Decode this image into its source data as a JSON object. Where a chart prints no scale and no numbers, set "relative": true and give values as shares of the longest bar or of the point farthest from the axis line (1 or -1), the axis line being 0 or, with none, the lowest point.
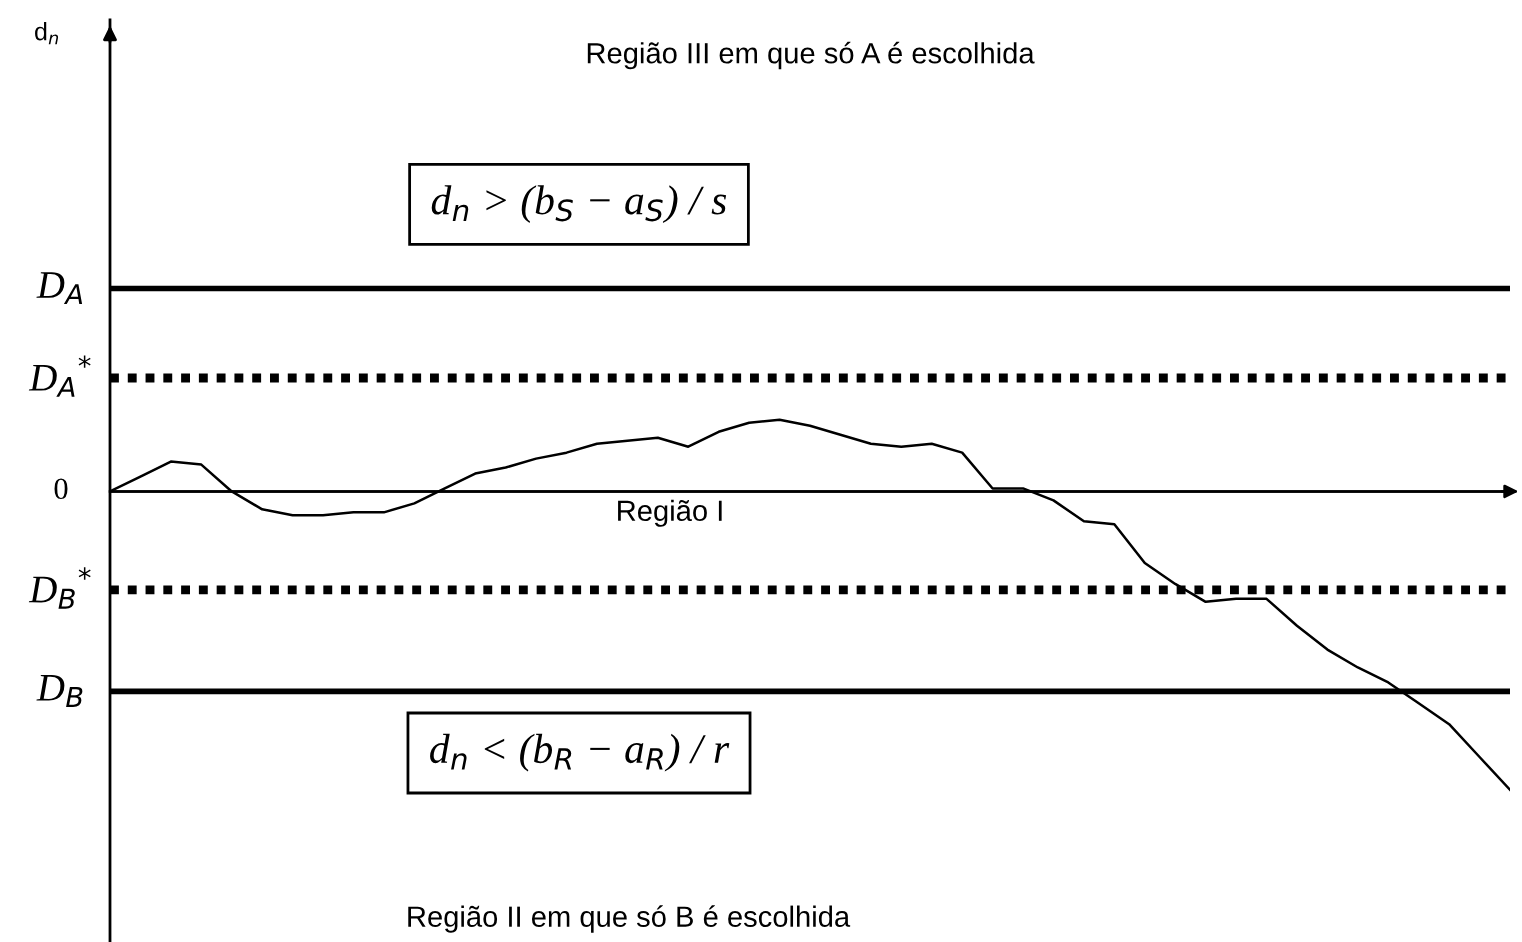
{
  "chart_data": {
    "type": "line",
    "relative": true,
    "title": "Região III em que só A é escolhida",
    "categories": [
      null,
      null,
      null,
      null,
      null,
      null,
      null,
      null,
      null,
      null,
      null,
      null,
      null,
      null,
      null,
      null,
      null,
      null,
      null,
      null,
      null,
      null,
      null,
      null,
      null,
      null,
      null,
      null,
      null,
      null,
      null,
      null,
      null,
      null,
      null,
      null,
      null,
      null,
      null,
      null,
      null,
      null,
      null,
      null,
      null,
      null,
      null
    ],
    "series": [
      {
        "color": "#000000",
        "values": [
          0,
          0.05,
          0.1,
          0.09,
          0,
          -0.06,
          -0.08,
          -0.08,
          -0.07,
          -0.07,
          -0.04,
          0.01,
          0.06,
          0.08,
          0.11,
          0.13,
          0.16,
          0.17,
          0.18,
          0.15,
          0.2,
          0.23,
          0.24,
          0.22,
          0.19,
          0.16,
          0.15,
          0.16,
          0.13,
          0.01,
          0.01,
          -0.03,
          -0.1,
          -0.11,
          -0.24,
          -0.31,
          -0.37,
          -0.36,
          -0.36,
          -0.45,
          -0.53,
          -0.59,
          -0.64,
          -0.71,
          -0.78,
          -0.89,
          -1
        ]
      }
    ],
    "ref_lines": [
      {
        "axis": "y",
        "value": 0.68,
        "label": "D$_{A}$",
        "color": "#000000",
        "line_style": "solid"
      },
      {
        "axis": "y",
        "value": 0.38,
        "label": "D$_{A}$$^{*}$",
        "color": "#000000",
        "line_style": "dotted"
      },
      {
        "axis": "y",
        "value": 0,
        "label": "0",
        "color": "#000000",
        "line_style": "solid"
      },
      {
        "axis": "y",
        "value": -0.33,
        "label": "D$_{B}$$^{*}$",
        "color": "#000000",
        "line_style": "dotted"
      },
      {
        "axis": "y",
        "value": -0.67,
        "label": "D$_{B}$",
        "color": "#000000",
        "line_style": "solid"
      }
    ],
    "annotations": [
      "d$_{n}$ > (b$_{S}$ − a$_{S}$) / s",
      "Região I",
      "d$_{n}$ < (b$_{R}$ − a$_{R}$) / r",
      "Região II em que só B é escolhida",
      "d$_{n}$"
    ],
    "marker": "none",
    "line_style": "solid"
  }
}
